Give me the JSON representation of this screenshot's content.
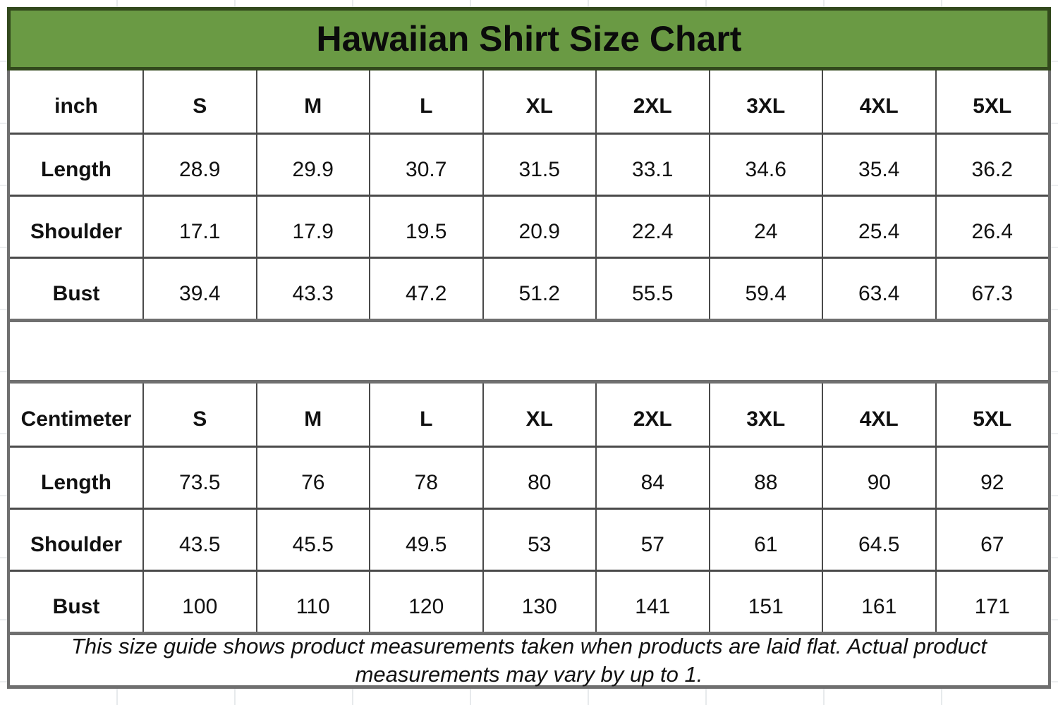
{
  "title": "Hawaiian Shirt Size Chart",
  "colors": {
    "header_bg": "#6a9a44",
    "header_border": "#32491c",
    "grid_line": "#4a4a4a",
    "frame_border": "#6f6f6f",
    "text_color": "#111111"
  },
  "tables": [
    {
      "unit_label": "inch",
      "sizes": [
        "S",
        "M",
        "L",
        "XL",
        "2XL",
        "3XL",
        "4XL",
        "5XL"
      ],
      "rows": [
        {
          "label": "Length",
          "values": [
            "28.9",
            "29.9",
            "30.7",
            "31.5",
            "33.1",
            "34.6",
            "35.4",
            "36.2"
          ]
        },
        {
          "label": "Shoulder",
          "values": [
            "17.1",
            "17.9",
            "19.5",
            "20.9",
            "22.4",
            "24",
            "25.4",
            "26.4"
          ]
        },
        {
          "label": "Bust",
          "values": [
            "39.4",
            "43.3",
            "47.2",
            "51.2",
            "55.5",
            "59.4",
            "63.4",
            "67.3"
          ]
        }
      ]
    },
    {
      "unit_label": "Centimeter",
      "sizes": [
        "S",
        "M",
        "L",
        "XL",
        "2XL",
        "3XL",
        "4XL",
        "5XL"
      ],
      "rows": [
        {
          "label": "Length",
          "values": [
            "73.5",
            "76",
            "78",
            "80",
            "84",
            "88",
            "90",
            "92"
          ]
        },
        {
          "label": "Shoulder",
          "values": [
            "43.5",
            "45.5",
            "49.5",
            "53",
            "57",
            "61",
            "64.5",
            "67"
          ]
        },
        {
          "label": "Bust",
          "values": [
            "100",
            "110",
            "120",
            "130",
            "141",
            "151",
            "161",
            "171"
          ]
        }
      ]
    }
  ],
  "footer": {
    "line1": "This size guide shows product measurements taken when products are laid flat. Actual product",
    "line2": "measurements may vary by up to 1."
  }
}
